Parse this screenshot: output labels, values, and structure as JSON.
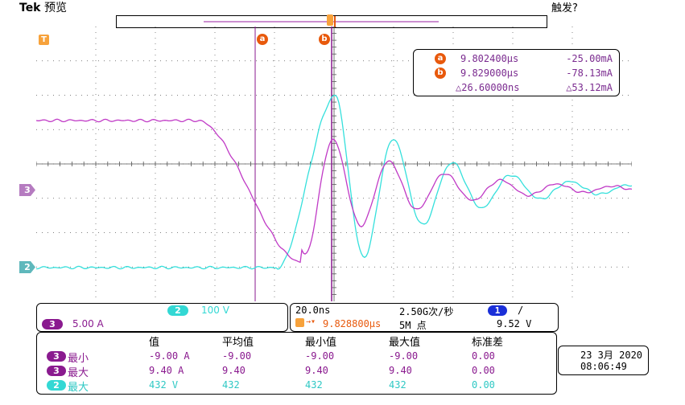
{
  "header": {
    "brand": "Tek",
    "mode": "预览",
    "trigger_status": "触发?"
  },
  "colors": {
    "ch3": "#9a1fa0",
    "ch2": "#35e0dc",
    "cursor": "#e8590c",
    "cursor_line": "#8a1a8f"
  },
  "markers": {
    "trigger": "T",
    "cursor_a": "a",
    "cursor_b": "b",
    "ch3_ground": "3",
    "ch2_ground": "2"
  },
  "cursors": {
    "a": {
      "label": "a",
      "time": "9.802400μs",
      "value": "-25.00mA"
    },
    "b": {
      "label": "b",
      "time": "9.829000μs",
      "value": "-78.13mA"
    },
    "delta": {
      "time": "△26.60000ns",
      "value": "△53.12mA"
    }
  },
  "channels": {
    "ch2": {
      "number": "2",
      "scale": "100 V"
    },
    "ch3": {
      "number": "3",
      "scale": "5.00 A"
    }
  },
  "horizontal": {
    "timebase": "20.0ns",
    "sample_rate": "2.50G次/秒",
    "position": "9.828800μs",
    "record_length": "5M 点",
    "trigger_channel": "1",
    "trigger_slope": "/",
    "trigger_level": "9.52 V"
  },
  "measurements": {
    "headers": [
      "值",
      "平均值",
      "最小值",
      "最大值",
      "标准差"
    ],
    "rows": [
      {
        "ch": "3",
        "name": "最小",
        "value": "-9.00 A",
        "mean": "-9.00",
        "min": "-9.00",
        "max": "-9.00",
        "std": "0.00"
      },
      {
        "ch": "3",
        "name": "最大",
        "value": "9.40 A",
        "mean": "9.40",
        "min": "9.40",
        "max": "9.40",
        "std": "0.00"
      },
      {
        "ch": "2",
        "name": "最大",
        "value": "432 V",
        "mean": "432",
        "min": "432",
        "max": "432",
        "std": "0.00"
      }
    ]
  },
  "datetime": {
    "date": "23 3月 2020",
    "time": "08:06:49"
  }
}
